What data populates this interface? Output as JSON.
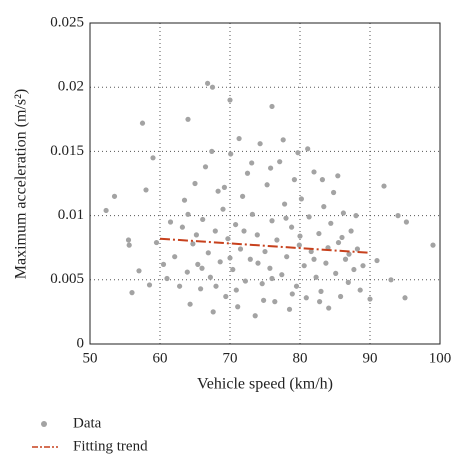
{
  "chart_data": {
    "type": "scatter",
    "xlabel": "Vehicle speed (km/h)",
    "ylabel": "Maximum acceleration (m/s²)",
    "xlim": [
      50,
      100
    ],
    "ylim": [
      0,
      0.025
    ],
    "xticks": [
      50,
      60,
      70,
      80,
      90,
      100
    ],
    "yticks": [
      0,
      0.005,
      0.01,
      0.015,
      0.02,
      0.025
    ],
    "grid": true,
    "legend": "bottom-left",
    "series": [
      {
        "name": "Data",
        "color": "#a3a3a3",
        "x": [
          52.3,
          53.5,
          55.5,
          55.6,
          56.0,
          57.5,
          58.0,
          59.0,
          66.8,
          67.5,
          64.0,
          70.0,
          76.0,
          92.0,
          94.0,
          95.2,
          95.0,
          99.0,
          93.0,
          90.0,
          91.0,
          62.1,
          62.8,
          63.2,
          63.5,
          63.9,
          64.3,
          64.7,
          65.0,
          65.4,
          65.8,
          66.1,
          66.5,
          66.9,
          67.2,
          67.6,
          67.9,
          68.3,
          68.6,
          69.0,
          69.4,
          69.7,
          70.1,
          70.4,
          70.8,
          71.1,
          71.5,
          71.8,
          72.2,
          72.5,
          72.9,
          73.2,
          73.6,
          73.9,
          74.3,
          74.6,
          75.0,
          75.3,
          75.7,
          76.0,
          76.4,
          76.7,
          77.1,
          77.4,
          77.8,
          78.1,
          78.5,
          78.8,
          79.2,
          79.5,
          79.9,
          80.2,
          80.6,
          80.9,
          81.3,
          81.6,
          82.0,
          82.3,
          82.7,
          83.0,
          83.4,
          83.7,
          84.1,
          84.4,
          84.8,
          85.1,
          85.5,
          85.8,
          86.2,
          86.5,
          86.9,
          87.3,
          87.7,
          88.2,
          88.6,
          61.0,
          61.5,
          60.5,
          59.5,
          58.5,
          57.0,
          64.0,
          66.0,
          68.0,
          70.0,
          72.0,
          74.0,
          76.0,
          78.0,
          80.0,
          82.0,
          84.0,
          86.0,
          69.2,
          73.1,
          75.8,
          79.7,
          83.2,
          67.4,
          71.3,
          77.6,
          81.1,
          85.4,
          65.2,
          70.9,
          74.8,
          78.9,
          82.8,
          87.0,
          89.0,
          88.0
        ],
        "values": [
          0.0104,
          0.0115,
          0.0081,
          0.0077,
          0.004,
          0.0172,
          0.012,
          0.0145,
          0.0203,
          0.02,
          0.0175,
          0.019,
          0.0185,
          0.0123,
          0.01,
          0.0095,
          0.0036,
          0.0077,
          0.005,
          0.0035,
          0.0065,
          0.0068,
          0.0045,
          0.0091,
          0.0112,
          0.0056,
          0.0031,
          0.0078,
          0.0125,
          0.0062,
          0.0043,
          0.0097,
          0.0138,
          0.0071,
          0.0052,
          0.0025,
          0.0088,
          0.0119,
          0.0064,
          0.0105,
          0.0037,
          0.0082,
          0.0148,
          0.0058,
          0.0093,
          0.0029,
          0.0074,
          0.0115,
          0.0049,
          0.0133,
          0.0066,
          0.0101,
          0.0022,
          0.0085,
          0.0156,
          0.0047,
          0.0072,
          0.0124,
          0.0059,
          0.0096,
          0.0033,
          0.0081,
          0.0142,
          0.0054,
          0.0109,
          0.0068,
          0.0027,
          0.0091,
          0.0128,
          0.0045,
          0.0077,
          0.0113,
          0.0061,
          0.0036,
          0.0099,
          0.0072,
          0.0134,
          0.0052,
          0.0086,
          0.0041,
          0.0107,
          0.0063,
          0.0028,
          0.0094,
          0.0118,
          0.0055,
          0.0079,
          0.0037,
          0.0102,
          0.0066,
          0.0048,
          0.0088,
          0.0058,
          0.0074,
          0.0042,
          0.0051,
          0.0095,
          0.0062,
          0.0079,
          0.0046,
          0.0057,
          0.0101,
          0.0059,
          0.0045,
          0.0067,
          0.0088,
          0.0063,
          0.0051,
          0.0098,
          0.0084,
          0.0066,
          0.0075,
          0.0083,
          0.0122,
          0.0141,
          0.0137,
          0.0149,
          0.0128,
          0.015,
          0.016,
          0.0159,
          0.0152,
          0.0131,
          0.0085,
          0.0042,
          0.0034,
          0.0039,
          0.0033,
          0.007,
          0.0061,
          0.01
        ]
      },
      {
        "name": "Fitting trend",
        "type": "line",
        "color": "#c7411d",
        "x": [
          60,
          90
        ],
        "values": [
          0.0082,
          0.0071
        ]
      }
    ]
  }
}
